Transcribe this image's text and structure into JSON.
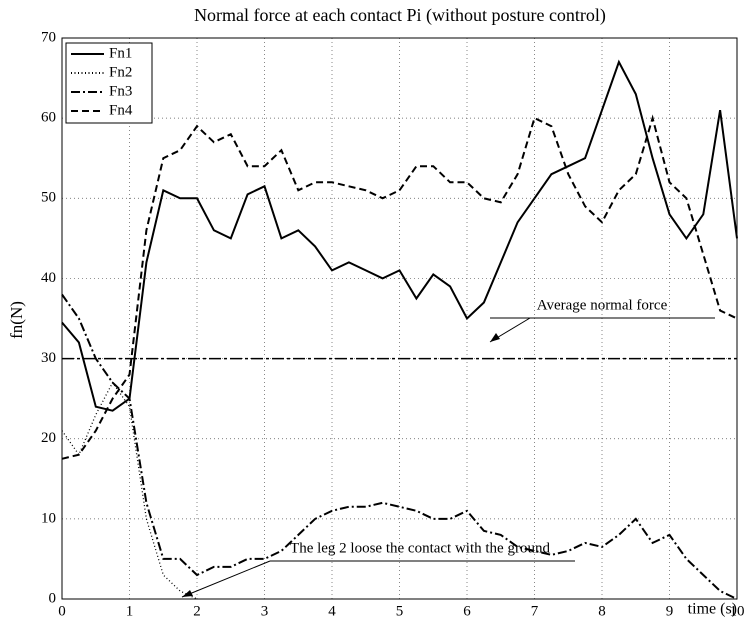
{
  "chart_data": {
    "type": "line",
    "title": "Normal force at each contact Pi  (without posture control)",
    "xlabel": "time (s)",
    "ylabel": "fn(N)",
    "x": [
      0,
      0.25,
      0.5,
      0.75,
      1,
      1.25,
      1.5,
      1.75,
      2,
      2.25,
      2.5,
      2.75,
      3,
      3.25,
      3.5,
      3.75,
      4,
      4.25,
      4.5,
      4.75,
      5,
      5.25,
      5.5,
      5.75,
      6,
      6.25,
      6.5,
      6.75,
      7,
      7.25,
      7.5,
      7.75,
      8,
      8.25,
      8.5,
      8.75,
      9,
      9.25,
      9.5,
      9.75,
      10
    ],
    "series": [
      {
        "name": "Fn1",
        "color": "#000000",
        "style": "solid",
        "values": [
          34.5,
          32,
          24,
          23.5,
          25,
          42,
          51,
          50,
          50,
          46,
          45,
          50.5,
          51.5,
          45,
          46,
          44,
          41,
          42,
          41,
          40,
          41,
          37.5,
          40.5,
          39,
          35,
          37,
          42,
          47,
          50,
          53,
          54,
          55,
          61,
          67,
          63,
          55,
          48,
          45,
          48,
          61,
          45
        ]
      },
      {
        "name": "Fn2",
        "color": "#000000",
        "style": "dotted",
        "values": [
          21,
          18,
          23,
          27,
          24,
          10,
          3,
          1,
          0,
          null,
          null,
          null,
          null,
          null,
          null,
          null,
          null,
          null,
          null,
          null,
          null,
          null,
          null,
          null,
          null,
          null,
          null,
          null,
          null,
          null,
          null,
          null,
          null,
          null,
          null,
          null,
          null,
          null,
          null,
          null,
          null
        ]
      },
      {
        "name": "Fn3",
        "color": "#000000",
        "style": "dashdot",
        "values": [
          38,
          35,
          30,
          27,
          25,
          12,
          5,
          5,
          3,
          4,
          4,
          5,
          5,
          6,
          8,
          10,
          11,
          11.5,
          11.5,
          12,
          11.5,
          11,
          10,
          10,
          11,
          8.5,
          8,
          6.5,
          6,
          5.5,
          6,
          7,
          6.5,
          8,
          10,
          7,
          8,
          5,
          3,
          1,
          0
        ]
      },
      {
        "name": "Fn4",
        "color": "#000000",
        "style": "dashed",
        "values": [
          17.5,
          18,
          21,
          25,
          28,
          46,
          55,
          56,
          59,
          57,
          58,
          54,
          54,
          56,
          51,
          52,
          52,
          51.5,
          51,
          50,
          51,
          54,
          54,
          52,
          52,
          50,
          49.5,
          53,
          60,
          59,
          53,
          49,
          47,
          51,
          53,
          60,
          52,
          50,
          43,
          36,
          35
        ]
      }
    ],
    "reference_line": {
      "value": 30,
      "label": "Average normal force"
    },
    "annotation": "The leg 2 loose the contact with the ground",
    "xlim": [
      0,
      10
    ],
    "xticks": [
      0,
      1,
      2,
      3,
      4,
      5,
      6,
      7,
      8,
      9,
      10
    ],
    "ylim": [
      0,
      70
    ],
    "yticks": [
      0,
      10,
      20,
      30,
      40,
      50,
      60,
      70
    ],
    "grid": true,
    "legend": "upper left"
  }
}
